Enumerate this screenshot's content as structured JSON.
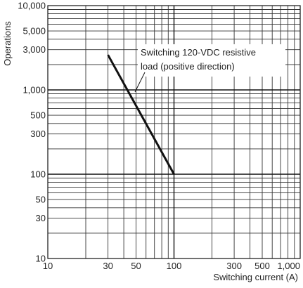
{
  "chart_data": {
    "type": "line",
    "title": "",
    "xlabel": "Switching current (A)",
    "ylabel": "Operations",
    "x_scale": "log",
    "y_scale": "log",
    "xlim": [
      10,
      1000
    ],
    "ylim": [
      10,
      10000
    ],
    "grid": true,
    "x_ticks": [
      10,
      30,
      50,
      100,
      300,
      500,
      1000
    ],
    "x_tick_labels": [
      "10",
      "30",
      "50",
      "100",
      "300",
      "500",
      "1,000"
    ],
    "y_ticks": [
      10,
      30,
      50,
      100,
      300,
      500,
      1000,
      3000,
      5000,
      10000
    ],
    "y_tick_labels": [
      "10",
      "30",
      "50",
      "100",
      "300",
      "500",
      "1,000",
      "3,000",
      "5,000",
      "10,000"
    ],
    "series": [
      {
        "x": [
          30,
          100
        ],
        "y": [
          2600,
          100
        ],
        "color": "#111111"
      }
    ],
    "annotations": [
      {
        "lines": [
          "Switching 120-VDC resistive",
          "load (positive direction)"
        ]
      }
    ]
  }
}
